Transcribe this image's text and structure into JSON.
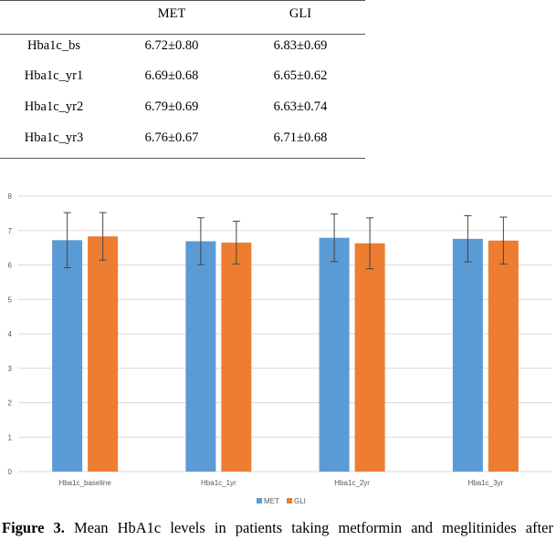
{
  "table": {
    "headers": [
      "",
      "MET",
      "GLI"
    ],
    "rows": [
      [
        "Hba1c_bs",
        "6.72±0.80",
        "6.83±0.69"
      ],
      [
        "Hba1c_yr1",
        "6.69±0.68",
        "6.65±0.62"
      ],
      [
        "Hba1c_yr2",
        "6.79±0.69",
        "6.63±0.74"
      ],
      [
        "Hba1c_yr3",
        "6.76±0.67",
        "6.71±0.68"
      ]
    ]
  },
  "chart_data": {
    "type": "bar",
    "categories": [
      "Hba1c_baseline",
      "Hba1c_1yr",
      "Hba1c_2yr",
      "Hba1c_3yr"
    ],
    "series": [
      {
        "name": "MET",
        "values": [
          6.72,
          6.69,
          6.79,
          6.76
        ],
        "errors": [
          0.8,
          0.68,
          0.69,
          0.67
        ],
        "color": "#5b9bd5"
      },
      {
        "name": "GLI",
        "values": [
          6.83,
          6.65,
          6.63,
          6.71
        ],
        "errors": [
          0.69,
          0.62,
          0.74,
          0.68
        ],
        "color": "#ed7d31"
      }
    ],
    "ylim": [
      0,
      8
    ],
    "yticks": [
      "0",
      "1",
      "2",
      "3",
      "4",
      "5",
      "6",
      "7",
      "8"
    ],
    "grid": true,
    "legend_position": "bottom"
  },
  "caption": {
    "label": "Figure 3.",
    "text": " Mean HbA1c levels in patients taking metformin and meglitinides after"
  }
}
